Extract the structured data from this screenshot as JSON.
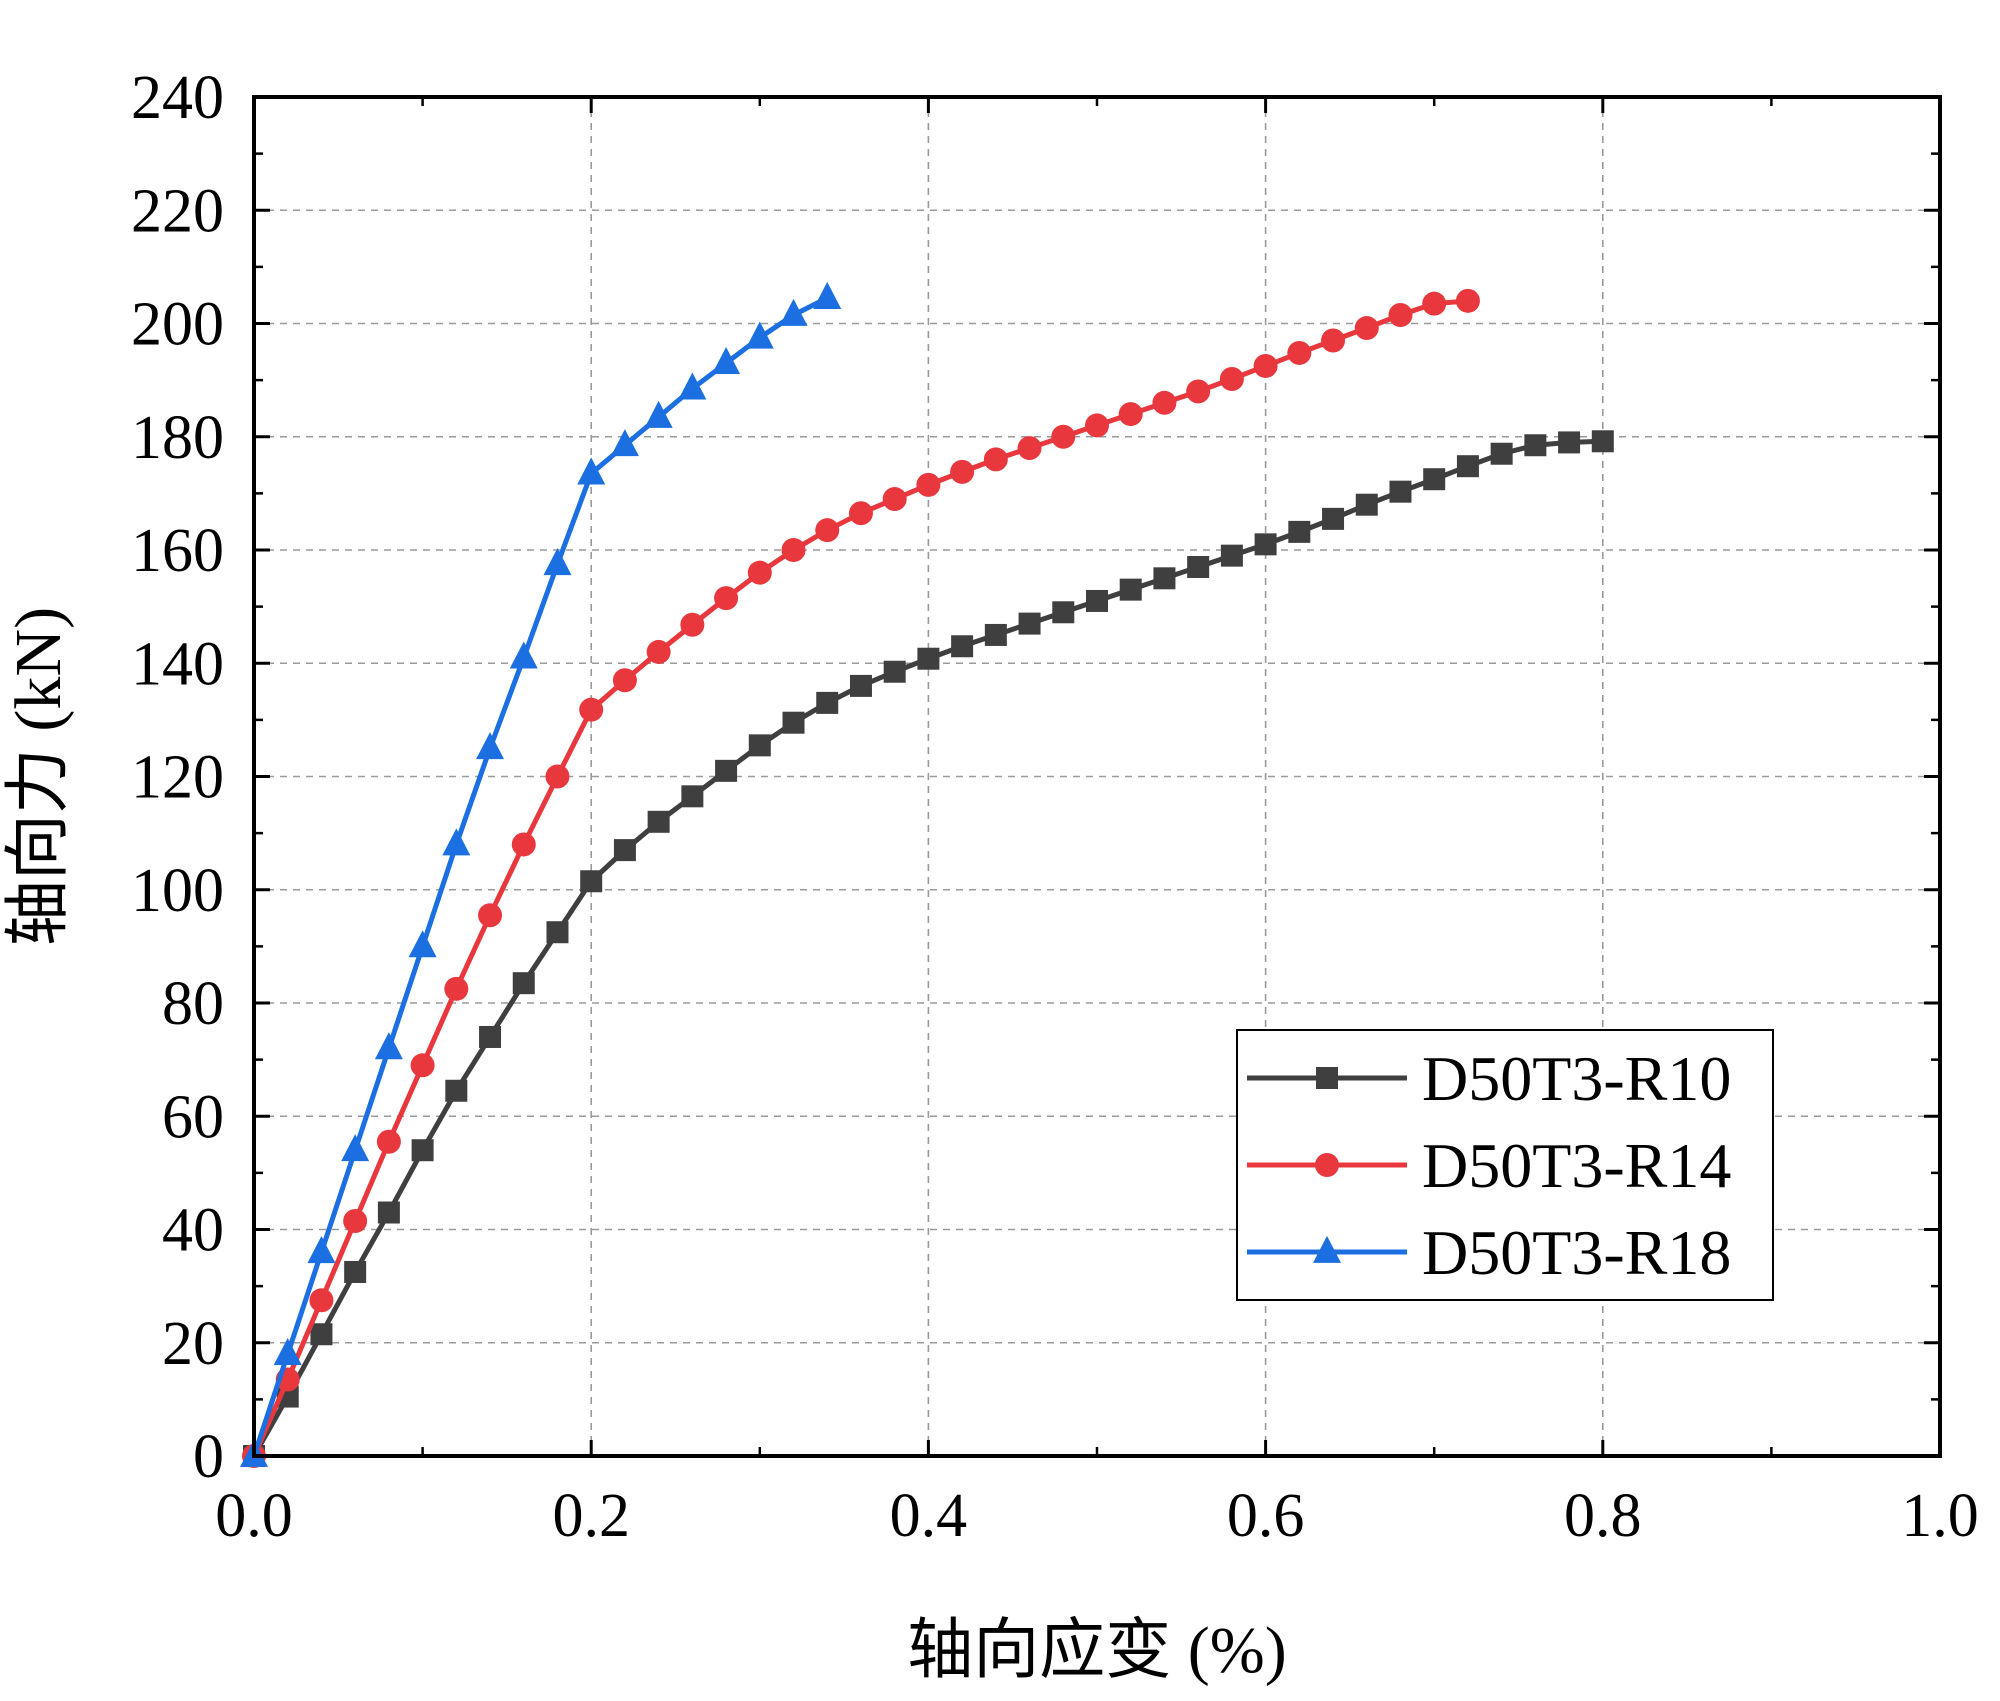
{
  "chart_data": {
    "type": "line",
    "title": "",
    "xlabel": "轴向应变 (%)",
    "ylabel": "轴向力 (kN)",
    "xlim": [
      0,
      1.0
    ],
    "ylim": [
      0,
      240
    ],
    "xticks": [
      "0.0",
      "0.2",
      "0.4",
      "0.6",
      "0.8",
      "1.0"
    ],
    "yticks": [
      "0",
      "20",
      "40",
      "60",
      "80",
      "100",
      "120",
      "140",
      "160",
      "180",
      "200",
      "220",
      "240"
    ],
    "grid": true,
    "legend_position": "lower-right",
    "series": [
      {
        "name": "D50T3-R10",
        "color": "#3f3f3f",
        "marker": "square",
        "x": [
          0.0,
          0.02,
          0.04,
          0.06,
          0.08,
          0.1,
          0.12,
          0.14,
          0.16,
          0.18,
          0.2,
          0.22,
          0.24,
          0.26,
          0.28,
          0.3,
          0.32,
          0.34,
          0.36,
          0.38,
          0.4,
          0.42,
          0.44,
          0.46,
          0.48,
          0.5,
          0.52,
          0.54,
          0.56,
          0.58,
          0.6,
          0.62,
          0.64,
          0.66,
          0.68,
          0.7,
          0.72,
          0.74,
          0.76,
          0.78,
          0.8
        ],
        "y": [
          0,
          10.5,
          21.5,
          32.5,
          43,
          54,
          64.5,
          74,
          83.5,
          92.5,
          101.5,
          107,
          112,
          116.5,
          121,
          125.5,
          129.5,
          133,
          136,
          138.5,
          140.8,
          143,
          145,
          147,
          149,
          151,
          153,
          155,
          157,
          159,
          161,
          163.2,
          165.5,
          168,
          170.3,
          172.5,
          174.8,
          177,
          178.5,
          179,
          179.2
        ]
      },
      {
        "name": "D50T3-R14",
        "color": "#e8383d",
        "marker": "circle",
        "x": [
          0.0,
          0.02,
          0.04,
          0.06,
          0.08,
          0.1,
          0.12,
          0.14,
          0.16,
          0.18,
          0.2,
          0.22,
          0.24,
          0.26,
          0.28,
          0.3,
          0.32,
          0.34,
          0.36,
          0.38,
          0.4,
          0.42,
          0.44,
          0.46,
          0.48,
          0.5,
          0.52,
          0.54,
          0.56,
          0.58,
          0.6,
          0.62,
          0.64,
          0.66,
          0.68,
          0.7,
          0.72
        ],
        "y": [
          0,
          13.5,
          27.5,
          41.5,
          55.5,
          69,
          82.5,
          95.5,
          108,
          120,
          131.8,
          137,
          142,
          146.8,
          151.5,
          156,
          160,
          163.5,
          166.5,
          169,
          171.5,
          173.8,
          176,
          178,
          180,
          182,
          184,
          186,
          188,
          190.2,
          192.5,
          194.8,
          197,
          199.2,
          201.5,
          203.5,
          204
        ]
      },
      {
        "name": "D50T3-R18",
        "color": "#1c6fe0",
        "marker": "triangle",
        "x": [
          0.0,
          0.02,
          0.04,
          0.06,
          0.08,
          0.1,
          0.12,
          0.14,
          0.16,
          0.18,
          0.2,
          0.22,
          0.24,
          0.26,
          0.28,
          0.3,
          0.32,
          0.34
        ],
        "y": [
          0,
          18,
          36,
          54,
          72,
          90,
          108,
          125,
          141,
          157.5,
          173.5,
          178.5,
          183.5,
          188.5,
          193,
          197.5,
          201.5,
          204.5
        ]
      }
    ]
  }
}
